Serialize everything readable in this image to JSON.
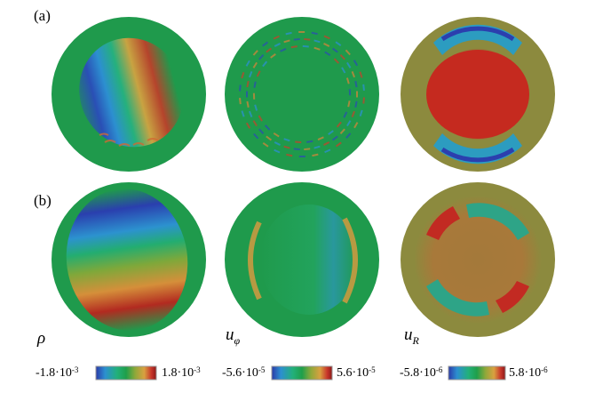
{
  "panels": [
    {
      "label": "(a)"
    },
    {
      "label": "(b)"
    }
  ],
  "variables": [
    {
      "symbol": "ρ",
      "sub": ""
    },
    {
      "symbol": "u",
      "sub": "φ"
    },
    {
      "symbol": "u",
      "sub": "R"
    }
  ],
  "colorbars": [
    {
      "min_mant": "-1.8·10",
      "min_exp": "-3",
      "max_mant": "1.8·10",
      "max_exp": "-3"
    },
    {
      "min_mant": "-5.6·10",
      "min_exp": "-5",
      "max_mant": "5.6·10",
      "max_exp": "-5"
    },
    {
      "min_mant": "-5.8·10",
      "min_exp": "-6",
      "max_mant": "5.8·10",
      "max_exp": "-6"
    }
  ],
  "colormap": [
    "#2b3aa8",
    "#2c8fd0",
    "#22b07a",
    "#1f9f4a",
    "#8fa83a",
    "#d9a040",
    "#c8352a",
    "#8a1a18"
  ],
  "colors": {
    "disk_base": "#1f9a4c",
    "uR_base": "#8c8a3e",
    "red": "#c22a22",
    "blue": "#2b45b0"
  }
}
